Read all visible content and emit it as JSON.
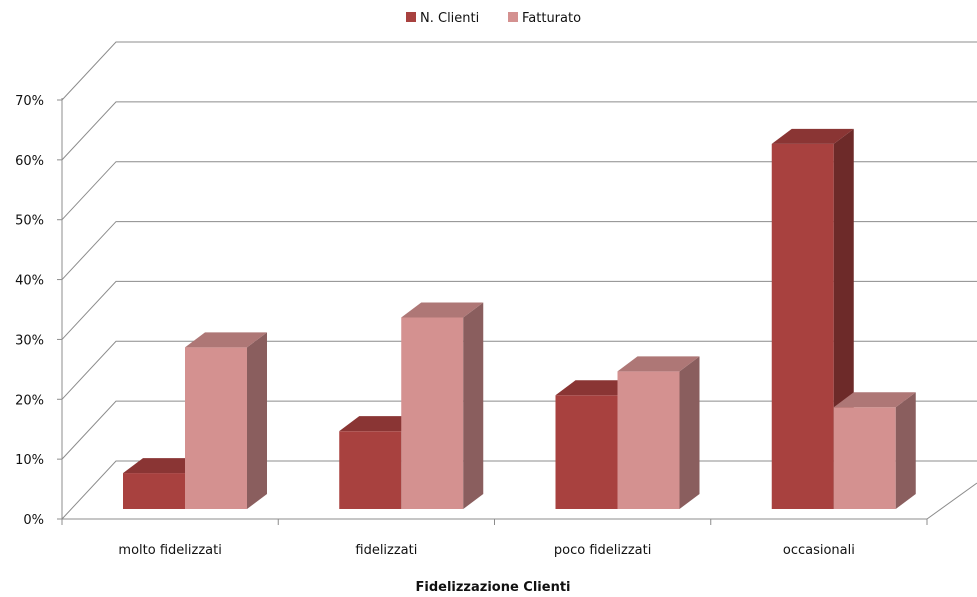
{
  "chart_data": {
    "type": "bar",
    "subtype": "3d-clustered-column",
    "title": "",
    "xlabel": "Fidelizzazione  Clienti",
    "ylabel": "",
    "categories": [
      "molto fidelizzati",
      "fidelizzati",
      "poco fidelizzati",
      "occasionali"
    ],
    "series": [
      {
        "name": "N. Clienti",
        "values": [
          6,
          13,
          19,
          61
        ],
        "color": "#a8413f"
      },
      {
        "name": "Fatturato",
        "values": [
          27,
          32,
          23,
          17
        ],
        "color": "#d49190"
      }
    ],
    "ylim": [
      0,
      70
    ],
    "y_ticks": [
      "0%",
      "10%",
      "20%",
      "30%",
      "40%",
      "50%",
      "60%",
      "70%"
    ],
    "y_unit": "%",
    "grid": true,
    "legend": "top-center"
  }
}
